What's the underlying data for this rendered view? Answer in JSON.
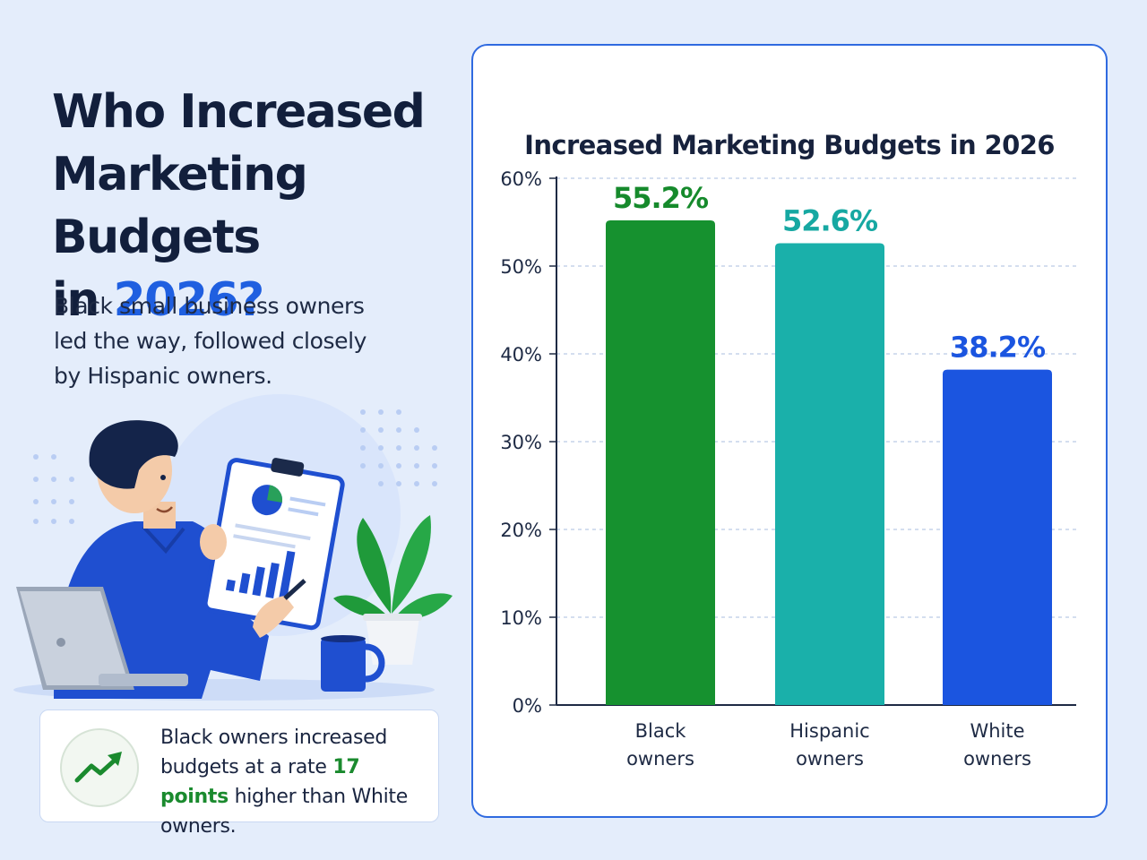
{
  "headline": {
    "line1": "Who Increased",
    "line2": "Marketing Budgets",
    "line3_prefix": "in ",
    "line3_accent": "2026?"
  },
  "subtext": "Black small business owners led the way, followed closely by Hispanic owners.",
  "callout": {
    "icon": "trend-up-icon",
    "text_before": "Black owners increased budgets at a rate ",
    "highlight": "17 points",
    "text_after": " higher than White owners."
  },
  "colors": {
    "accent": "#1f5fe0",
    "black_owners": "#16912f",
    "hispanic_owners": "#1ab0aa",
    "white_owners": "#1b55e0",
    "highlight": "#1a8a2e"
  },
  "chart_data": {
    "type": "bar",
    "title": "Increased Marketing Budgets in 2026",
    "categories": [
      [
        "Black",
        "owners"
      ],
      [
        "Hispanic",
        "owners"
      ],
      [
        "White",
        "owners"
      ]
    ],
    "values": [
      55.2,
      52.6,
      38.2
    ],
    "value_labels": [
      "55.2%",
      "52.6%",
      "38.2%"
    ],
    "bar_colors": [
      "#16912f",
      "#1ab0aa",
      "#1b55e0"
    ],
    "label_colors": [
      "#168a2c",
      "#16a8a2",
      "#1b55e0"
    ],
    "ylim": [
      0,
      60
    ],
    "yticks": [
      0,
      10,
      20,
      30,
      40,
      50,
      60
    ],
    "ytick_labels": [
      "0%",
      "10%",
      "20%",
      "30%",
      "40%",
      "50%",
      "60%"
    ],
    "grid": true,
    "xlabel": "",
    "ylabel": ""
  }
}
